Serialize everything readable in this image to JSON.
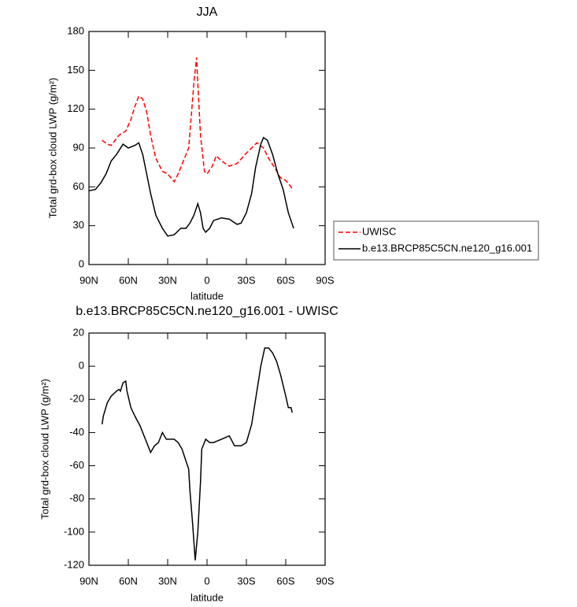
{
  "chart_data": [
    {
      "type": "line",
      "title": "JJA",
      "xlabel": "latitude",
      "ylabel": "Total grd-box cloud LWP (g/m²)",
      "xlim": [
        90,
        -90
      ],
      "xticks": [
        {
          "value": 90,
          "label": "90N"
        },
        {
          "value": 60,
          "label": "60N"
        },
        {
          "value": 30,
          "label": "30N"
        },
        {
          "value": 0,
          "label": "0"
        },
        {
          "value": -30,
          "label": "30S"
        },
        {
          "value": -60,
          "label": "60S"
        },
        {
          "value": -90,
          "label": "90S"
        }
      ],
      "ylim": [
        0,
        180
      ],
      "yticks": [
        0,
        30,
        60,
        90,
        120,
        150,
        180
      ],
      "legend": "right",
      "series": [
        {
          "name": "UWISC",
          "color": "#ff0000",
          "style": "dashed",
          "x": [
            80,
            76,
            73,
            67,
            62,
            58,
            55,
            52,
            49,
            46,
            43,
            39,
            34,
            30,
            25,
            22,
            18,
            14,
            12,
            10,
            8,
            7,
            5,
            2,
            0,
            -4,
            -7,
            -11,
            -17,
            -23,
            -29,
            -34,
            -38,
            -43,
            -47,
            -52,
            -56,
            -60,
            -64,
            -65
          ],
          "values": [
            96,
            93,
            92,
            100,
            103,
            112,
            122,
            130,
            128,
            118,
            100,
            82,
            72,
            70,
            64,
            70,
            80,
            90,
            115,
            140,
            160,
            140,
            100,
            72,
            70,
            76,
            84,
            80,
            76,
            78,
            85,
            90,
            94,
            90,
            82,
            74,
            67,
            65,
            60,
            58
          ]
        },
        {
          "name": "b.e13.BRCP85C5CN.ne120_g16.001",
          "color": "#000000",
          "style": "solid",
          "x": [
            90,
            85,
            81,
            77,
            73,
            69,
            64,
            60,
            55,
            52,
            49,
            46,
            43,
            39,
            34,
            30,
            25,
            20,
            16,
            13,
            10,
            7,
            5,
            3,
            1,
            -2,
            -5,
            -11,
            -17,
            -23,
            -26,
            -30,
            -34,
            -37,
            -41,
            -43,
            -46,
            -50,
            -54,
            -58,
            -62,
            -66
          ],
          "values": [
            57,
            58,
            63,
            70,
            80,
            85,
            93,
            90,
            92,
            94,
            85,
            70,
            55,
            38,
            28,
            22,
            23,
            28,
            28,
            32,
            38,
            47,
            40,
            28,
            25,
            28,
            34,
            36,
            35,
            31,
            32,
            40,
            55,
            75,
            93,
            98,
            96,
            85,
            70,
            58,
            40,
            28
          ]
        }
      ]
    },
    {
      "type": "line",
      "title": "b.e13.BRCP85C5CN.ne120_g16.001 - UWISC",
      "xlabel": "latitude",
      "ylabel": "Total grd-box cloud LWP (g/m²)",
      "xlim": [
        90,
        -90
      ],
      "xticks": [
        {
          "value": 90,
          "label": "90N"
        },
        {
          "value": 60,
          "label": "60N"
        },
        {
          "value": 30,
          "label": "30N"
        },
        {
          "value": 0,
          "label": "0"
        },
        {
          "value": -30,
          "label": "30S"
        },
        {
          "value": -60,
          "label": "60S"
        },
        {
          "value": -90,
          "label": "90S"
        }
      ],
      "ylim": [
        -120,
        20
      ],
      "yticks": [
        -120,
        -100,
        -80,
        -60,
        -40,
        -20,
        0,
        20
      ],
      "series": [
        {
          "color": "#000000",
          "style": "solid",
          "x": [
            80,
            79,
            76,
            73,
            69,
            67,
            66,
            64,
            62,
            61,
            58,
            55,
            51,
            47,
            43,
            40,
            37,
            34,
            31,
            25,
            22,
            19,
            17,
            14,
            13,
            11,
            9,
            7,
            5,
            4,
            1,
            -2,
            -5,
            -11,
            -17,
            -21,
            -26,
            -30,
            -34,
            -37,
            -41,
            -44,
            -47,
            -50,
            -53,
            -56,
            -60,
            -62,
            -64,
            -65
          ],
          "values": [
            -35,
            -30,
            -22,
            -18,
            -15,
            -14,
            -15,
            -10,
            -9,
            -15,
            -25,
            -30,
            -36,
            -44,
            -52,
            -48,
            -46,
            -40,
            -44,
            -44,
            -46,
            -50,
            -55,
            -62,
            -75,
            -95,
            -117,
            -100,
            -70,
            -50,
            -44,
            -46,
            -46,
            -44,
            -42,
            -48,
            -48,
            -46,
            -35,
            -20,
            0,
            11,
            11,
            8,
            3,
            -5,
            -18,
            -25,
            -25,
            -28
          ]
        }
      ]
    }
  ]
}
